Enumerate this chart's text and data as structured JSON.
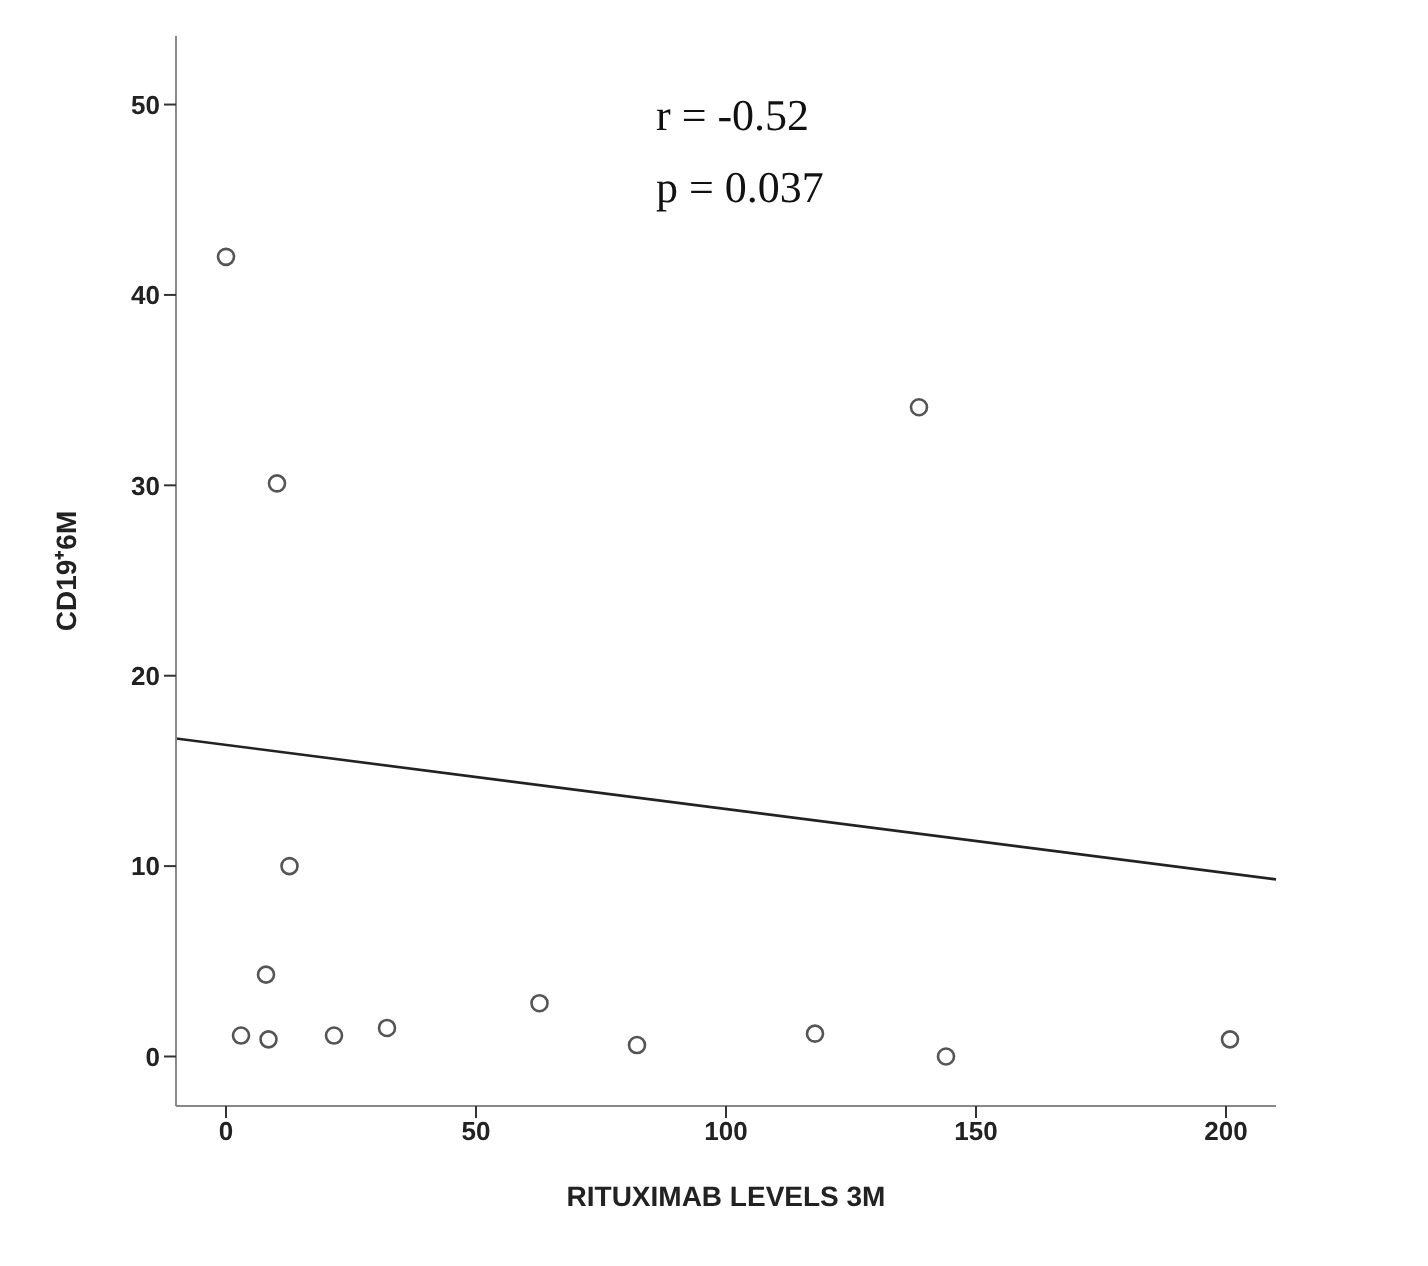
{
  "chart_data": {
    "type": "scatter",
    "xlabel": "RITUXIMAB LEVELS 3M",
    "ylabel": "CD19⁺6M",
    "annotations": [
      "r = -0.52",
      "p = 0.037"
    ],
    "xlim": [
      -10,
      210
    ],
    "xticks": [
      0,
      50,
      100,
      150,
      200
    ],
    "ylim": [
      -2.6,
      53.6
    ],
    "yticks": [
      0,
      10,
      20,
      30,
      40,
      50
    ],
    "grid": false,
    "legend": false,
    "marker": "circle",
    "series": [
      {
        "color": "#555555",
        "x": [
          0,
          10.2,
          12.7,
          8,
          3,
          8.5,
          21.6,
          32.2,
          62.7,
          82.2,
          117.8,
          138.6,
          144,
          200.8
        ],
        "values": [
          42,
          30.1,
          10,
          4.3,
          1.1,
          0.9,
          1.1,
          1.5,
          2.8,
          0.6,
          1.2,
          34.1,
          0,
          0.9
        ]
      },
      {
        "type": "line",
        "color": "#222222",
        "marker": "none",
        "x": [
          -10,
          210
        ],
        "values": [
          16.7,
          9.3
        ]
      }
    ]
  }
}
